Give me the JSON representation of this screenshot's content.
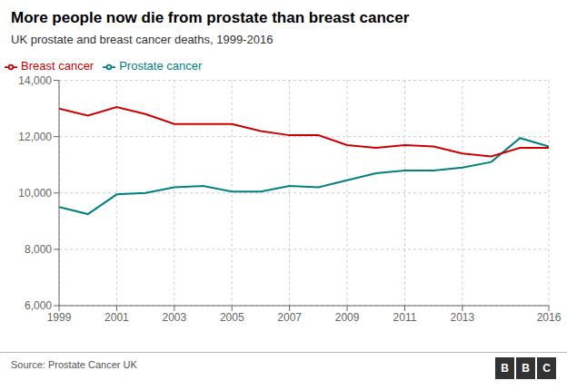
{
  "chart_data": {
    "type": "line",
    "title": "More people now die from prostate than breast cancer",
    "subtitle": "UK prostate and breast cancer deaths, 1999-2016",
    "source": "Source: Prostate Cancer UK",
    "annotations": [
      "BBC"
    ],
    "x": [
      1999,
      2000,
      2001,
      2002,
      2003,
      2004,
      2005,
      2006,
      2007,
      2008,
      2009,
      2010,
      2011,
      2012,
      2013,
      2014,
      2015,
      2016
    ],
    "series": [
      {
        "name": "Prostate cancer",
        "color": "#008080",
        "values": [
          9500,
          9250,
          9950,
          10000,
          10200,
          10250,
          10050,
          10050,
          10250,
          10200,
          10450,
          10700,
          10800,
          10800,
          10900,
          11100,
          11950,
          11650
        ]
      },
      {
        "name": "Breast cancer",
        "color": "#cc0000",
        "values": [
          13000,
          12750,
          13050,
          12800,
          12450,
          12450,
          12450,
          12200,
          12050,
          12050,
          11700,
          11600,
          11700,
          11650,
          11400,
          11300,
          11600,
          11600
        ]
      }
    ],
    "xlim": [
      1999,
      2016
    ],
    "xticks": [
      1999,
      2001,
      2003,
      2005,
      2007,
      2009,
      2011,
      2013,
      2016
    ],
    "ylim": [
      6000,
      14000
    ],
    "yticks": [
      {
        "value": 6000,
        "label": "6,000"
      },
      {
        "value": 8000,
        "label": "8,000"
      },
      {
        "value": 10000,
        "label": "10,000"
      },
      {
        "value": 12000,
        "label": "12,000"
      },
      {
        "value": 14000,
        "label": "14,000"
      }
    ],
    "grid": true,
    "legend": "top left"
  }
}
